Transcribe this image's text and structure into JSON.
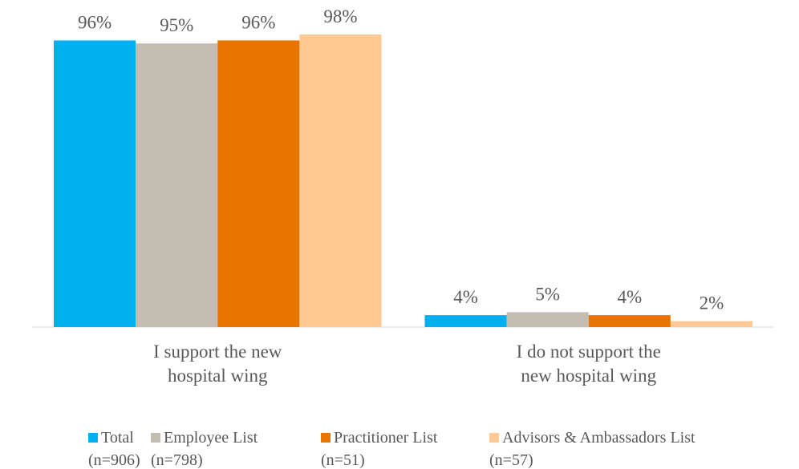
{
  "chart_data": {
    "type": "bar",
    "categories": [
      "I support the new\nhospital wing",
      "I do not support the\nnew hospital wing"
    ],
    "series": [
      {
        "name": "Total\n(n=906)",
        "color": "#00b0f0",
        "values": [
          96,
          4
        ],
        "value_labels": [
          "96%",
          "4%"
        ]
      },
      {
        "name": "Employee List\n(n=798)",
        "color": "#c4bdb2",
        "values": [
          95,
          5
        ],
        "value_labels": [
          "95%",
          "5%"
        ]
      },
      {
        "name": "Practitioner List\n(n=51)",
        "color": "#e97500",
        "values": [
          96,
          4
        ],
        "value_labels": [
          "96%",
          "4%"
        ]
      },
      {
        "name": "Advisors & Ambassadors List\n(n=57)",
        "color": "#ffc993",
        "values": [
          98,
          2
        ],
        "value_labels": [
          "98%",
          "2%"
        ]
      }
    ],
    "legend": "bottom"
  }
}
